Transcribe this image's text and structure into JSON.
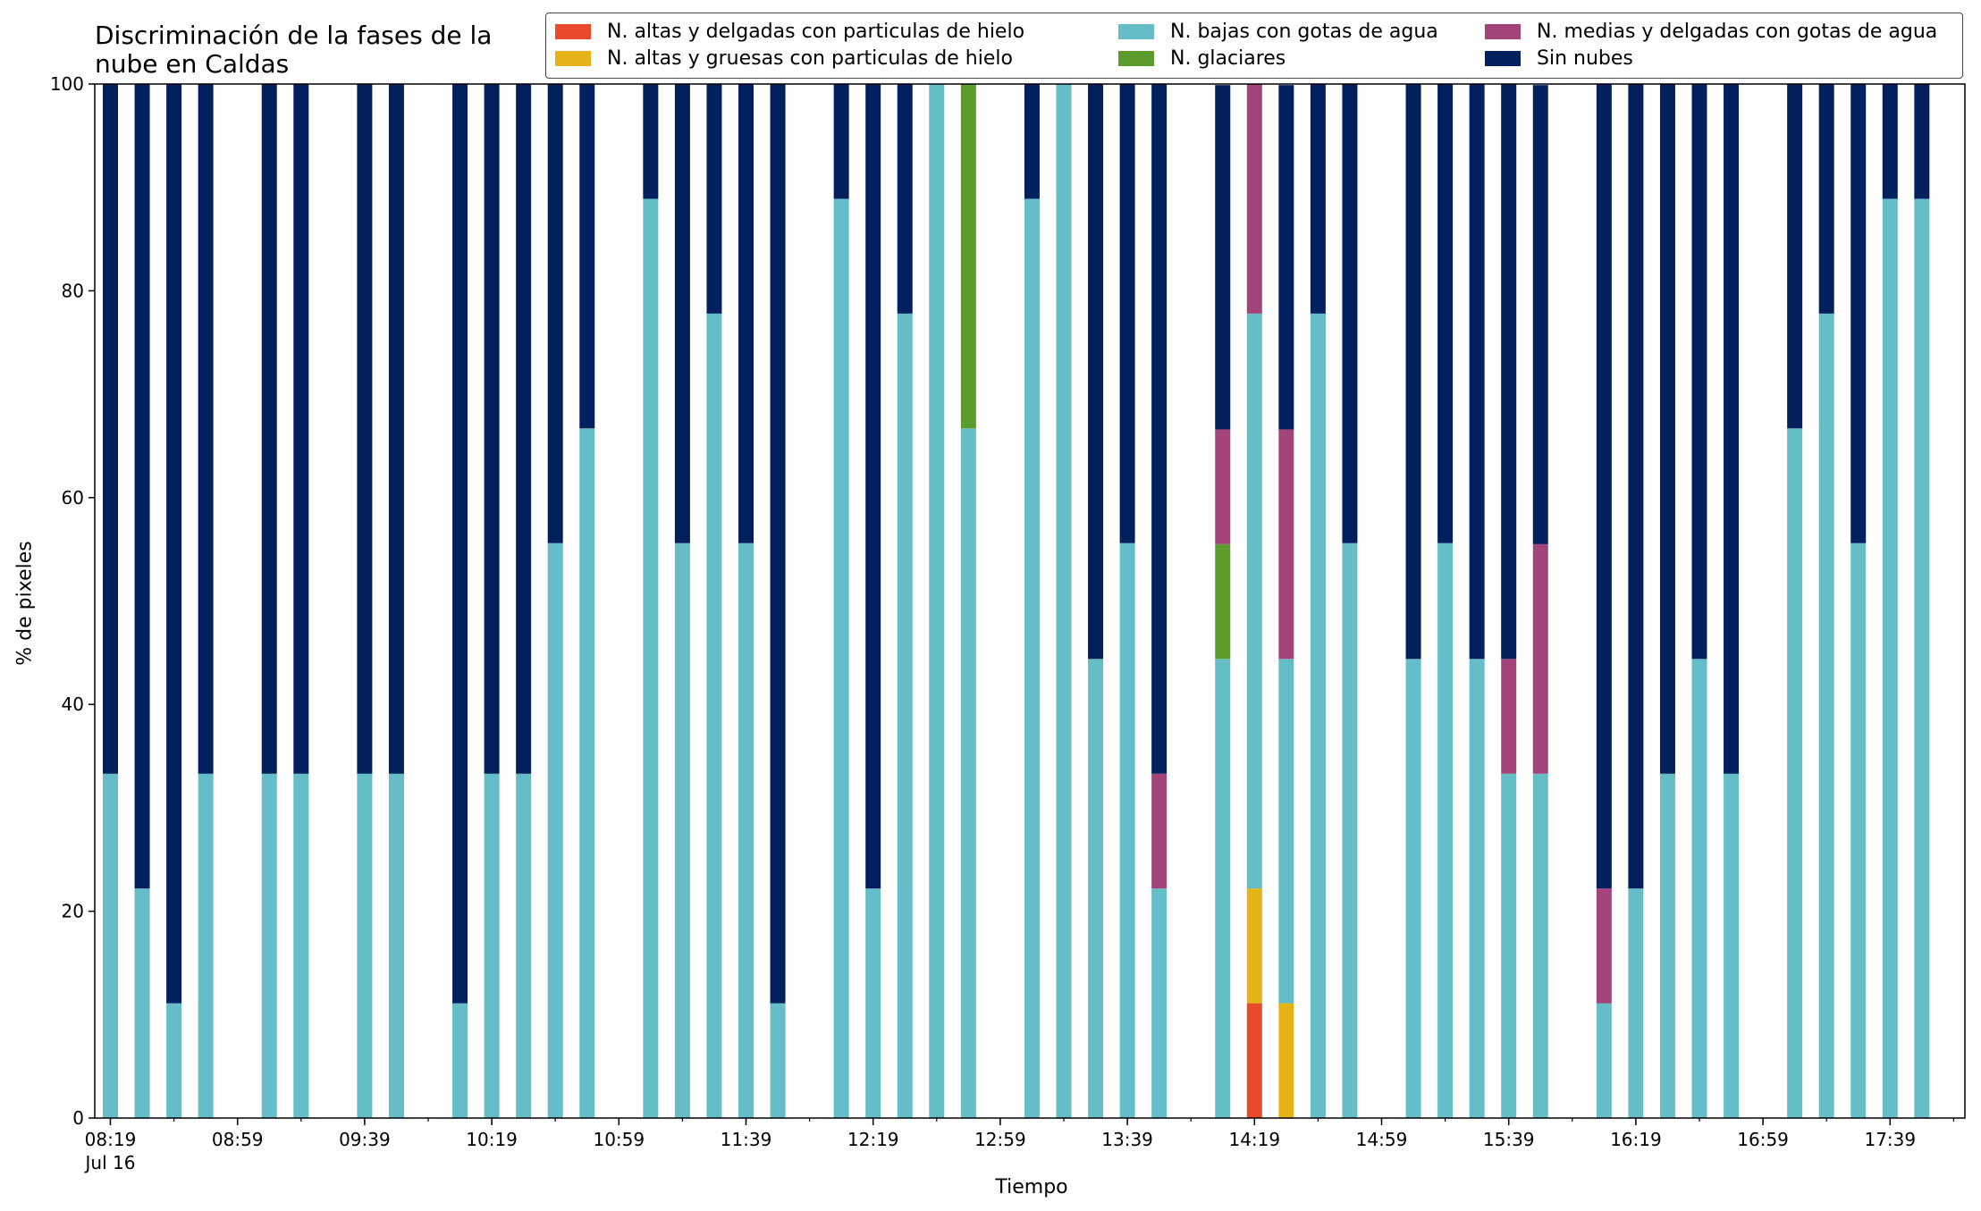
{
  "chart_data": {
    "type": "bar",
    "stacked": true,
    "title": "Discriminación de la fases de la nube en Caldas",
    "xlabel": "Tiempo",
    "ylabel": "% de pixeles",
    "ylim": [
      0,
      100
    ],
    "grid": false,
    "legend_position": "top",
    "x_tick_labels": [
      "08:19",
      "08:59",
      "09:39",
      "10:19",
      "10:59",
      "11:39",
      "12:19",
      "12:59",
      "13:39",
      "14:19",
      "14:59",
      "15:39",
      "16:19",
      "16:59",
      "17:39"
    ],
    "x_date_label": "Jul 16",
    "y_ticks": [
      0,
      20,
      40,
      60,
      80,
      100
    ],
    "x": [
      "08:19",
      "08:29",
      "08:39",
      "08:49",
      "08:59",
      "09:09",
      "09:19",
      "09:29",
      "09:39",
      "09:49",
      "09:59",
      "10:09",
      "10:19",
      "10:29",
      "10:39",
      "10:49",
      "10:59",
      "11:09",
      "11:19",
      "11:29",
      "11:39",
      "11:49",
      "11:59",
      "12:09",
      "12:19",
      "12:29",
      "12:39",
      "12:49",
      "12:59",
      "13:09",
      "13:19",
      "13:29",
      "13:39",
      "13:49",
      "13:59",
      "14:09",
      "14:19",
      "14:29",
      "14:39",
      "14:49",
      "14:59",
      "15:09",
      "15:19",
      "15:29",
      "15:39",
      "15:49",
      "15:59",
      "16:09",
      "16:19",
      "16:29",
      "16:39",
      "16:49",
      "16:59",
      "17:09",
      "17:19",
      "17:29",
      "17:39",
      "17:49",
      "17:59"
    ],
    "series": [
      {
        "name": "N. altas y delgadas con particulas de hielo",
        "color": "#e94a2b",
        "values": [
          0,
          0,
          0,
          0,
          null,
          0,
          0,
          null,
          0,
          0,
          null,
          0,
          0,
          0,
          0,
          0,
          null,
          0,
          0,
          0,
          0,
          0,
          null,
          0,
          0,
          0,
          0,
          0,
          null,
          0,
          0,
          0,
          0,
          0,
          null,
          0,
          11.1,
          0,
          0,
          0,
          null,
          0,
          0,
          0,
          0,
          0,
          null,
          0,
          0,
          0,
          0,
          0,
          null,
          0,
          0,
          0,
          0,
          0,
          0
        ]
      },
      {
        "name": "N. altas y gruesas con particulas de hielo",
        "color": "#e5b318",
        "values": [
          0,
          0,
          0,
          0,
          null,
          0,
          0,
          null,
          0,
          0,
          null,
          0,
          0,
          0,
          0,
          0,
          null,
          0,
          0,
          0,
          0,
          0,
          null,
          0,
          0,
          0,
          0,
          0,
          null,
          0,
          0,
          0,
          0,
          0,
          null,
          0,
          11.1,
          11.1,
          0,
          0,
          null,
          0,
          0,
          0,
          0,
          0,
          null,
          0,
          0,
          0,
          0,
          0,
          null,
          0,
          0,
          0,
          0,
          0,
          0
        ]
      },
      {
        "name": "N. bajas con gotas de agua",
        "color": "#64bdc7",
        "values": [
          33.3,
          22.2,
          11.1,
          33.3,
          null,
          33.3,
          33.3,
          null,
          33.3,
          33.3,
          null,
          11.1,
          33.3,
          33.3,
          55.6,
          66.7,
          null,
          88.9,
          55.6,
          77.8,
          55.6,
          11.1,
          null,
          88.9,
          22.2,
          77.8,
          100,
          66.7,
          null,
          88.9,
          100,
          44.4,
          55.6,
          22.2,
          null,
          44.4,
          55.6,
          33.3,
          77.8,
          55.6,
          null,
          44.4,
          55.6,
          44.4,
          33.3,
          33.3,
          null,
          11.1,
          22.2,
          33.3,
          44.4,
          33.3,
          null,
          66.7,
          77.8,
          55.6,
          88.9,
          88.9,
          0
        ]
      },
      {
        "name": "N. glaciares",
        "color": "#5b9c2d",
        "values": [
          0,
          0,
          0,
          0,
          null,
          0,
          0,
          null,
          0,
          0,
          null,
          0,
          0,
          0,
          0,
          0,
          null,
          0,
          0,
          0,
          0,
          0,
          null,
          0,
          0,
          0,
          0,
          33.3,
          null,
          0,
          0,
          0,
          0,
          0,
          null,
          11.1,
          0,
          0,
          0,
          0,
          null,
          0,
          0,
          0,
          0,
          0,
          null,
          0,
          0,
          0,
          0,
          0,
          null,
          0,
          0,
          0,
          0,
          0,
          0
        ]
      },
      {
        "name": "N. medias y delgadas con gotas de agua",
        "color": "#a2447a",
        "values": [
          0,
          0,
          0,
          0,
          null,
          0,
          0,
          null,
          0,
          0,
          null,
          0,
          0,
          0,
          0,
          0,
          null,
          0,
          0,
          0,
          0,
          0,
          null,
          0,
          0,
          0,
          0,
          0,
          null,
          0,
          0,
          0,
          0,
          11.1,
          null,
          11.1,
          22.2,
          22.2,
          0,
          0,
          null,
          0,
          0,
          0,
          11.1,
          22.2,
          null,
          11.1,
          0,
          0,
          0,
          0,
          null,
          0,
          0,
          0,
          0,
          0,
          0
        ]
      },
      {
        "name": "Sin nubes",
        "color": "#03205e",
        "values": [
          66.7,
          77.8,
          88.9,
          66.7,
          null,
          66.7,
          66.7,
          null,
          66.7,
          66.7,
          null,
          88.9,
          66.7,
          66.7,
          44.4,
          33.3,
          null,
          11.1,
          44.4,
          22.2,
          44.4,
          88.9,
          null,
          11.1,
          77.8,
          22.2,
          0,
          0,
          null,
          11.1,
          0,
          55.6,
          44.4,
          66.7,
          null,
          33.3,
          0,
          33.3,
          22.2,
          44.4,
          null,
          55.6,
          44.4,
          55.6,
          55.6,
          44.4,
          null,
          77.8,
          77.8,
          66.7,
          55.6,
          66.7,
          null,
          33.3,
          22.2,
          44.4,
          11.1,
          11.1,
          0
        ]
      }
    ]
  }
}
